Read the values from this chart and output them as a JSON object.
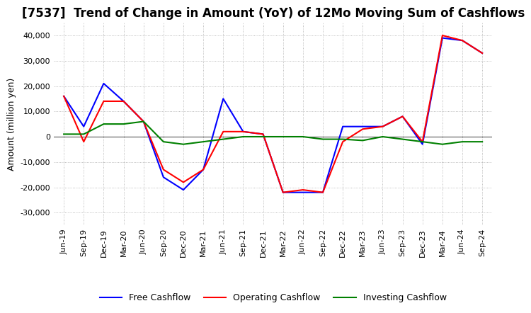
{
  "title": "[7537]  Trend of Change in Amount (YoY) of 12Mo Moving Sum of Cashflows",
  "ylabel": "Amount (million yen)",
  "ylim": [
    -35000,
    45000
  ],
  "yticks": [
    -30000,
    -20000,
    -10000,
    0,
    10000,
    20000,
    30000,
    40000
  ],
  "x_labels": [
    "Jun-19",
    "Sep-19",
    "Dec-19",
    "Mar-20",
    "Jun-20",
    "Sep-20",
    "Dec-20",
    "Mar-21",
    "Jun-21",
    "Sep-21",
    "Dec-21",
    "Mar-22",
    "Jun-22",
    "Sep-22",
    "Dec-22",
    "Mar-23",
    "Jun-23",
    "Sep-23",
    "Dec-23",
    "Mar-24",
    "Jun-24",
    "Sep-24"
  ],
  "operating": [
    16000,
    -2000,
    14000,
    14000,
    6000,
    -13000,
    -18000,
    -13000,
    2000,
    2000,
    1000,
    -22000,
    -21000,
    -22000,
    -2000,
    3000,
    4000,
    8000,
    -2000,
    40000,
    38000,
    33000
  ],
  "investing": [
    1000,
    1000,
    5000,
    5000,
    6000,
    -2000,
    -3000,
    -2000,
    -1000,
    0,
    0,
    0,
    0,
    -1000,
    -1000,
    -1500,
    0,
    -1000,
    -2000,
    -3000,
    -2000,
    -2000
  ],
  "free": [
    16000,
    4000,
    21000,
    14000,
    6000,
    -16000,
    -21000,
    -13000,
    15000,
    2000,
    1000,
    -22000,
    -22000,
    -22000,
    4000,
    4000,
    4000,
    8000,
    -3000,
    39000,
    38000,
    33000
  ],
  "operating_color": "#ff0000",
  "investing_color": "#008000",
  "free_color": "#0000ff",
  "bg_color": "#ffffff",
  "grid_color": "#aaaaaa",
  "title_fontsize": 12,
  "label_fontsize": 9,
  "tick_fontsize": 8
}
